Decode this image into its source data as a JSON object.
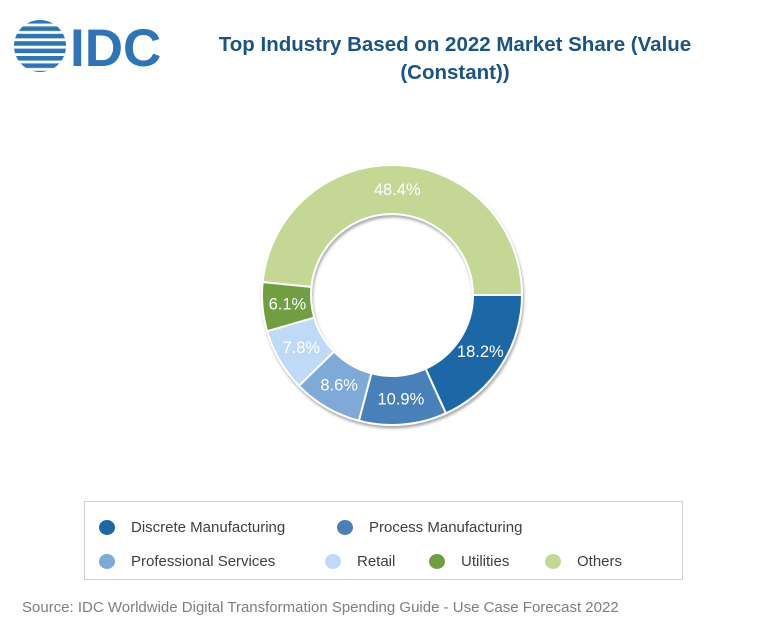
{
  "logo": {
    "text": "IDC",
    "color": "#2d74b8"
  },
  "title": {
    "line1": "Top Industry Based on 2022 Market Share (Value",
    "line2": "(Constant))",
    "color": "#1a5486"
  },
  "chart_data": {
    "type": "pie",
    "subtype": "donut",
    "title": "Top Industry Based on 2022 Market Share (Value (Constant))",
    "categories": [
      "Discrete Manufacturing",
      "Process Manufacturing",
      "Professional Services",
      "Retail",
      "Utilities",
      "Others"
    ],
    "values": [
      18.2,
      10.9,
      8.6,
      7.8,
      6.1,
      48.4
    ],
    "labels": [
      "18.2%",
      "10.9%",
      "8.6%",
      "7.8%",
      "6.1%",
      "48.4%"
    ],
    "colors": [
      "#1e67a7",
      "#4a80ba",
      "#7fa9d6",
      "#bedaf7",
      "#6f9e3f",
      "#c4d795"
    ],
    "label_color": "#ffffff",
    "start_angle_clockwise_from_east_deg": 0,
    "inner_radius_ratio": 0.62,
    "legend_position": "bottom",
    "legend_rows": [
      [
        "Discrete Manufacturing",
        "Process Manufacturing"
      ],
      [
        "Professional Services",
        "Retail",
        "Utilities",
        "Others"
      ]
    ]
  },
  "source": "Source: IDC Worldwide Digital Transformation Spending Guide - Use Case Forecast 2022"
}
